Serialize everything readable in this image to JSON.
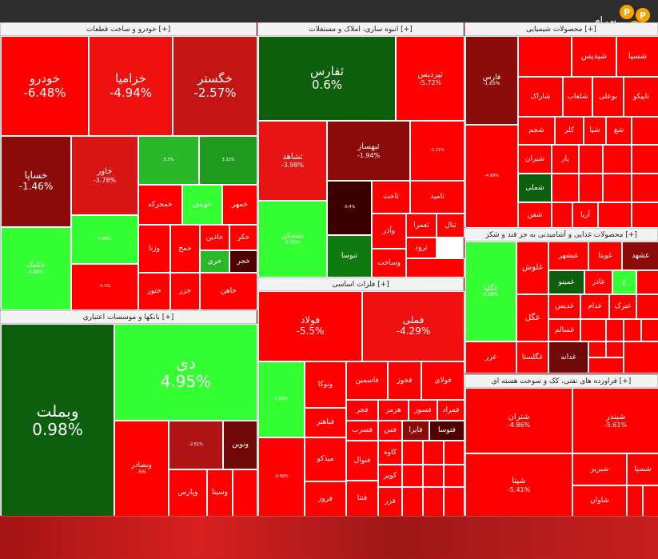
{
  "logo": {
    "text": "پی ام",
    "letters": [
      "P",
      "P",
      "M"
    ]
  },
  "colors": {
    "strong_red": "#ff0000",
    "red": "#e8141e",
    "dark_red": "#b01414",
    "maroon": "#700808",
    "very_dark": "#3d0000",
    "bright_green": "#33ff33",
    "green": "#22b022",
    "dark_green": "#0d5e0d"
  },
  "sections": [
    {
      "id": "auto",
      "title": "خودرو و ساخت قطعات [+]",
      "cells": [
        {
          "name": "خودرو",
          "pct": "-6.48%",
          "color": "#ff0000"
        },
        {
          "name": "خزامیا",
          "pct": "-4.94%",
          "color": "#ef1010"
        },
        {
          "name": "خگستر",
          "pct": "-2.57%",
          "color": "#c41414"
        },
        {
          "name": "خساپا",
          "pct": "-1.46%",
          "color": "#8b0b0b"
        },
        {
          "name": "خاور",
          "pct": "-3.78%",
          "color": "#d81616"
        },
        {
          "name": "خکمک",
          "pct": "4.98%",
          "color": "#33ff33"
        },
        {
          "name": "",
          "pct": "5.3%",
          "color": "#2ab82a"
        },
        {
          "name": "",
          "pct": "3.32%",
          "color": "#1f9a1f"
        },
        {
          "name": "",
          "pct": "4.84%",
          "color": "#33ff33"
        },
        {
          "name": "خمحرکه",
          "pct": "",
          "color": "#ff0000"
        },
        {
          "name": "خویش",
          "pct": "",
          "color": "#33ff33"
        },
        {
          "name": "خمهر",
          "pct": "",
          "color": "#ff0000"
        },
        {
          "name": "",
          "pct": "-4.3%",
          "color": "#ff0000"
        },
        {
          "name": "وزنا",
          "pct": "",
          "color": "#ff0000"
        },
        {
          "name": "خمح",
          "pct": "",
          "color": "#ff0000"
        },
        {
          "name": "خاذین",
          "pct": "",
          "color": "#ff0000"
        },
        {
          "name": "خکر",
          "pct": "",
          "color": "#ff0000"
        },
        {
          "name": "خزر",
          "pct": "",
          "color": "#ff0000"
        },
        {
          "name": "خری",
          "pct": "",
          "color": "#2ab82a"
        },
        {
          "name": "خجر",
          "pct": "",
          "color": "#500000"
        },
        {
          "name": "ختور",
          "pct": "",
          "color": "#ff0000"
        },
        {
          "name": "خاهن",
          "pct": "",
          "color": "#ff0000"
        }
      ]
    },
    {
      "id": "real_estate",
      "title": "انبوه سازی، املاک و مستغلات [+]",
      "cells": [
        {
          "name": "ثفارس",
          "pct": "0.6%",
          "color": "#0d5e0d"
        },
        {
          "name": "ثپردیس",
          "pct": "-5.72%",
          "color": "#ff0000"
        },
        {
          "name": "ثشاهد",
          "pct": "-3.98%",
          "color": "#e81414"
        },
        {
          "name": "ثبهساز",
          "pct": "-1.94%",
          "color": "#8b0b0b"
        },
        {
          "name": "",
          "pct": "-5.21%",
          "color": "#ff0000"
        },
        {
          "name": "",
          "pct": "-0.4%",
          "color": "#3d0000"
        },
        {
          "name": "ثاخت",
          "pct": "",
          "color": "#ff0000"
        },
        {
          "name": "ثامید",
          "pct": "",
          "color": "#ff0000"
        },
        {
          "name": "ثمسکن",
          "pct": "4.05%",
          "color": "#33ff33"
        },
        {
          "name": "وآذر",
          "pct": "",
          "color": "#ff0000"
        },
        {
          "name": "ثعمرا",
          "pct": "",
          "color": "#ff0000"
        },
        {
          "name": "ثنال",
          "pct": "",
          "color": "#ff0000"
        },
        {
          "name": "ثنوسا",
          "pct": "",
          "color": "#0f7a0f"
        },
        {
          "name": "ثرود",
          "pct": "",
          "color": "#ff0000"
        },
        {
          "name": "وساخت",
          "pct": "",
          "color": "#ff0000"
        }
      ]
    },
    {
      "id": "chemical",
      "title": "محصولات شیمیایی [+]",
      "cells": [
        {
          "name": "فارس",
          "pct": "-1.65%",
          "color": "#8b0b0b"
        },
        {
          "name": "",
          "pct": "",
          "color": "#ff0000"
        },
        {
          "name": "شپدیس",
          "pct": "",
          "color": "#ff0000"
        },
        {
          "name": "شسپا",
          "pct": "",
          "color": "#ff0000"
        },
        {
          "name": "",
          "pct": "-4.99%",
          "color": "#ff0000"
        },
        {
          "name": "شاراک",
          "pct": "",
          "color": "#ff0000"
        },
        {
          "name": "شلعاب",
          "pct": "",
          "color": "#ff0000"
        },
        {
          "name": "بوعلی",
          "pct": "",
          "color": "#ff0000"
        },
        {
          "name": "تاپیکو",
          "pct": "",
          "color": "#ff0000"
        },
        {
          "name": "شجم",
          "pct": "",
          "color": "#ff0000"
        },
        {
          "name": "کلر",
          "pct": "",
          "color": "#ff0000"
        },
        {
          "name": "شپا",
          "pct": "",
          "color": "#ff0000"
        },
        {
          "name": "شغ",
          "pct": "",
          "color": "#ff0000"
        },
        {
          "name": "",
          "pct": "",
          "color": "#ff0000"
        },
        {
          "name": "شیران",
          "pct": "",
          "color": "#ff0000"
        },
        {
          "name": "پار",
          "pct": "",
          "color": "#ff0000"
        },
        {
          "name": "شملی",
          "pct": "",
          "color": "#0d5e0d"
        },
        {
          "name": "شفن",
          "pct": "",
          "color": "#ff0000"
        },
        {
          "name": "آریا",
          "pct": "",
          "color": "#ff0000"
        }
      ]
    },
    {
      "id": "food",
      "title": "محصولات غذایی و آشامیدنی به جز قند و شکر [+]",
      "cells": [
        {
          "name": "غگلپا",
          "pct": "6.98%",
          "color": "#33ff33"
        },
        {
          "name": "غلوش",
          "pct": "",
          "color": "#ff0000"
        },
        {
          "name": "غبشهر",
          "pct": "",
          "color": "#ff0000"
        },
        {
          "name": "غویتا",
          "pct": "",
          "color": "#ff0000"
        },
        {
          "name": "غشهد",
          "pct": "",
          "color": "#8b0b0b"
        },
        {
          "name": "غمینو",
          "pct": "",
          "color": "#0d5e0d"
        },
        {
          "name": "غاذر",
          "pct": "",
          "color": "#ff0000"
        },
        {
          "name": "غ",
          "pct": "",
          "color": "#33ff33"
        },
        {
          "name": "غگل",
          "pct": "",
          "color": "#ff0000"
        },
        {
          "name": "غدیس",
          "pct": "",
          "color": "#ff0000"
        },
        {
          "name": "غدام",
          "pct": "",
          "color": "#ff0000"
        },
        {
          "name": "غبرک",
          "pct": "",
          "color": "#ff0000"
        },
        {
          "name": "غزر",
          "pct": "",
          "color": "#ff0000"
        },
        {
          "name": "غگلستا",
          "pct": "",
          "color": "#ff0000"
        },
        {
          "name": "غسالم",
          "pct": "",
          "color": "#ff0000"
        },
        {
          "name": "غدانه",
          "pct": "",
          "color": "#700808"
        }
      ]
    },
    {
      "id": "banks",
      "title": "بانکها و موسسات اعتباری [+]",
      "cells": [
        {
          "name": "وبملت",
          "pct": "0.98%",
          "color": "#0d5e0d"
        },
        {
          "name": "دی",
          "pct": "4.95%",
          "color": "#33ff33"
        },
        {
          "name": "وبصادر",
          "pct": "-5%",
          "color": "#ff0000"
        },
        {
          "name": "",
          "pct": "-2.61%",
          "color": "#b01414"
        },
        {
          "name": "ونوین",
          "pct": "",
          "color": "#700808"
        },
        {
          "name": "وپارس",
          "pct": "",
          "color": "#ff0000"
        },
        {
          "name": "وسینا",
          "pct": "",
          "color": "#ff0000"
        }
      ]
    },
    {
      "id": "metals",
      "title": "فلزات اساسی [+]",
      "cells": [
        {
          "name": "فولاد",
          "pct": "-5.5%",
          "color": "#ff0000"
        },
        {
          "name": "فملی",
          "pct": "-4.29%",
          "color": "#ef1010"
        },
        {
          "name": "",
          "pct": "0.98%",
          "color": "#33ff33"
        },
        {
          "name": "وتوکا",
          "pct": "",
          "color": "#ff0000"
        },
        {
          "name": "فاسمین",
          "pct": "",
          "color": "#ff0000"
        },
        {
          "name": "فخوز",
          "pct": "",
          "color": "#ff0000"
        },
        {
          "name": "فولای",
          "pct": "",
          "color": "#ff0000"
        },
        {
          "name": "فجر",
          "pct": "",
          "color": "#ff0000"
        },
        {
          "name": "هرمز",
          "pct": "",
          "color": "#ff0000"
        },
        {
          "name": "فسوز",
          "pct": "",
          "color": "#ff0000"
        },
        {
          "name": "فمراد",
          "pct": "",
          "color": "#ff0000"
        },
        {
          "name": "فباهنر",
          "pct": "",
          "color": "#ff0000"
        },
        {
          "name": "فسرب",
          "pct": "",
          "color": "#ff0000"
        },
        {
          "name": "فس",
          "pct": "",
          "color": "#ff0000"
        },
        {
          "name": "فایرا",
          "pct": "",
          "color": "#8b0b0b"
        },
        {
          "name": "فتوسا",
          "pct": "",
          "color": "#500000"
        },
        {
          "name": "",
          "pct": "-4.99%",
          "color": "#ff0000"
        },
        {
          "name": "میدکو",
          "pct": "",
          "color": "#ff0000"
        },
        {
          "name": "فنوال",
          "pct": "",
          "color": "#ff0000"
        },
        {
          "name": "کاوه",
          "pct": "",
          "color": "#ff0000"
        },
        {
          "name": "کویر",
          "pct": "",
          "color": "#ff0000"
        },
        {
          "name": "فروز",
          "pct": "",
          "color": "#ff0000"
        },
        {
          "name": "فنتا",
          "pct": "",
          "color": "#ff0000"
        },
        {
          "name": "فزر",
          "pct": "",
          "color": "#ff0000"
        }
      ]
    },
    {
      "id": "oil",
      "title": "فراورده های نفتی، کک و سوخت هسته ای [+]",
      "cells": [
        {
          "name": "شتران",
          "pct": "-4.86%",
          "color": "#ff0000"
        },
        {
          "name": "شبندر",
          "pct": "-5.61%",
          "color": "#ff0000"
        },
        {
          "name": "شپنا",
          "pct": "-5.41%",
          "color": "#ff0000"
        },
        {
          "name": "شسپا",
          "pct": "",
          "color": "#ff0000"
        },
        {
          "name": "شبریز",
          "pct": "",
          "color": "#ff0000"
        },
        {
          "name": "شاوان",
          "pct": "",
          "color": "#ff0000"
        }
      ]
    }
  ]
}
